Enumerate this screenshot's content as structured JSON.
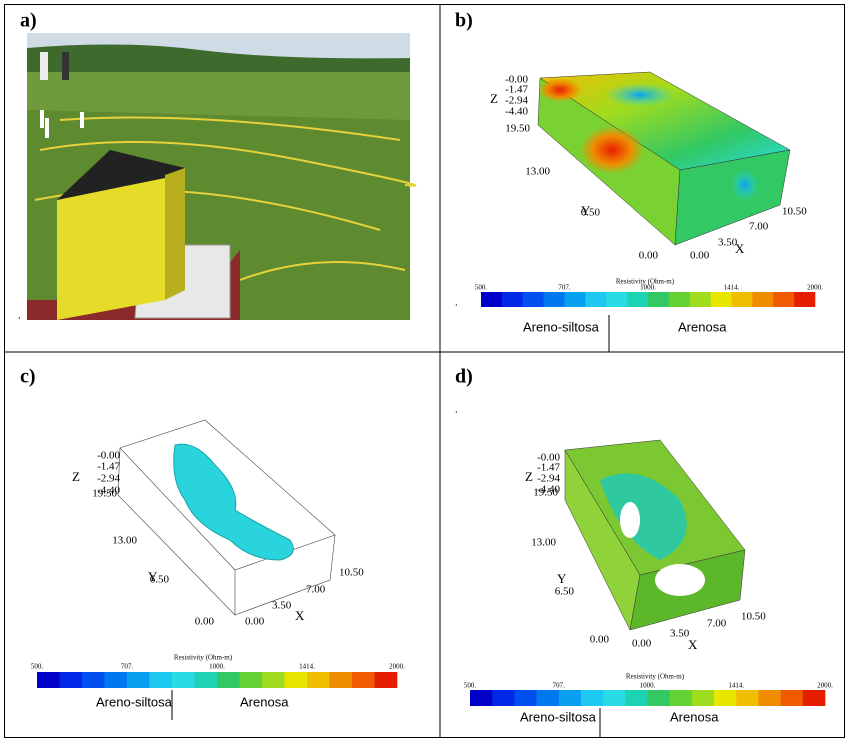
{
  "panels": [
    {
      "label": "a)",
      "note": "."
    },
    {
      "label": "b)",
      "z_label": "Z",
      "z_ticks": [
        "-0.00",
        "-1.47",
        "-2.94",
        "-4.40"
      ],
      "y_label": "Y",
      "y_ticks": [
        "19.50",
        "13.00",
        "6.50",
        "0.00"
      ],
      "x_label": "X",
      "x_ticks": [
        "0.00",
        "3.50",
        "7.00",
        "10.50"
      ],
      "colorbar": {
        "title": "Resistivity (Ohm-m)",
        "ticks": [
          "500.",
          "707.",
          "1000.",
          "1414.",
          "2000."
        ]
      },
      "legend": [
        "Areno-siltosa",
        "Arenosa"
      ],
      "note": "."
    },
    {
      "label": "c)",
      "z_label": "Z",
      "z_ticks": [
        "-0.00",
        "-1.47",
        "-2.94",
        "-4.40"
      ],
      "y_label": "Y",
      "y_ticks": [
        "19.50",
        "13.00",
        "6.50",
        "0.00"
      ],
      "x_label": "X",
      "x_ticks": [
        "0.00",
        "3.50",
        "7.00",
        "10.50"
      ],
      "colorbar": {
        "title": "Resistivity (Ohm-m)",
        "ticks": [
          "500.",
          "707.",
          "1000.",
          "1414.",
          "2000."
        ]
      },
      "legend": [
        "Areno-siltosa",
        "Arenosa"
      ]
    },
    {
      "label": "d)",
      "z_label": "Z",
      "z_ticks": [
        "-0.00",
        "-1.47",
        "-2.94",
        "-4.40"
      ],
      "y_label": "Y",
      "y_ticks": [
        "19.50",
        "13.00",
        "6.50",
        "0.00"
      ],
      "x_label": "X",
      "x_ticks": [
        "0.00",
        "3.50",
        "7.00",
        "10.50"
      ],
      "colorbar": {
        "title": "Resistivity (Ohm-m)",
        "ticks": [
          "500.",
          "707.",
          "1000.",
          "1414.",
          "2000."
        ]
      },
      "legend": [
        "Areno-siltosa",
        "Arenosa"
      ],
      "note": "."
    }
  ]
}
